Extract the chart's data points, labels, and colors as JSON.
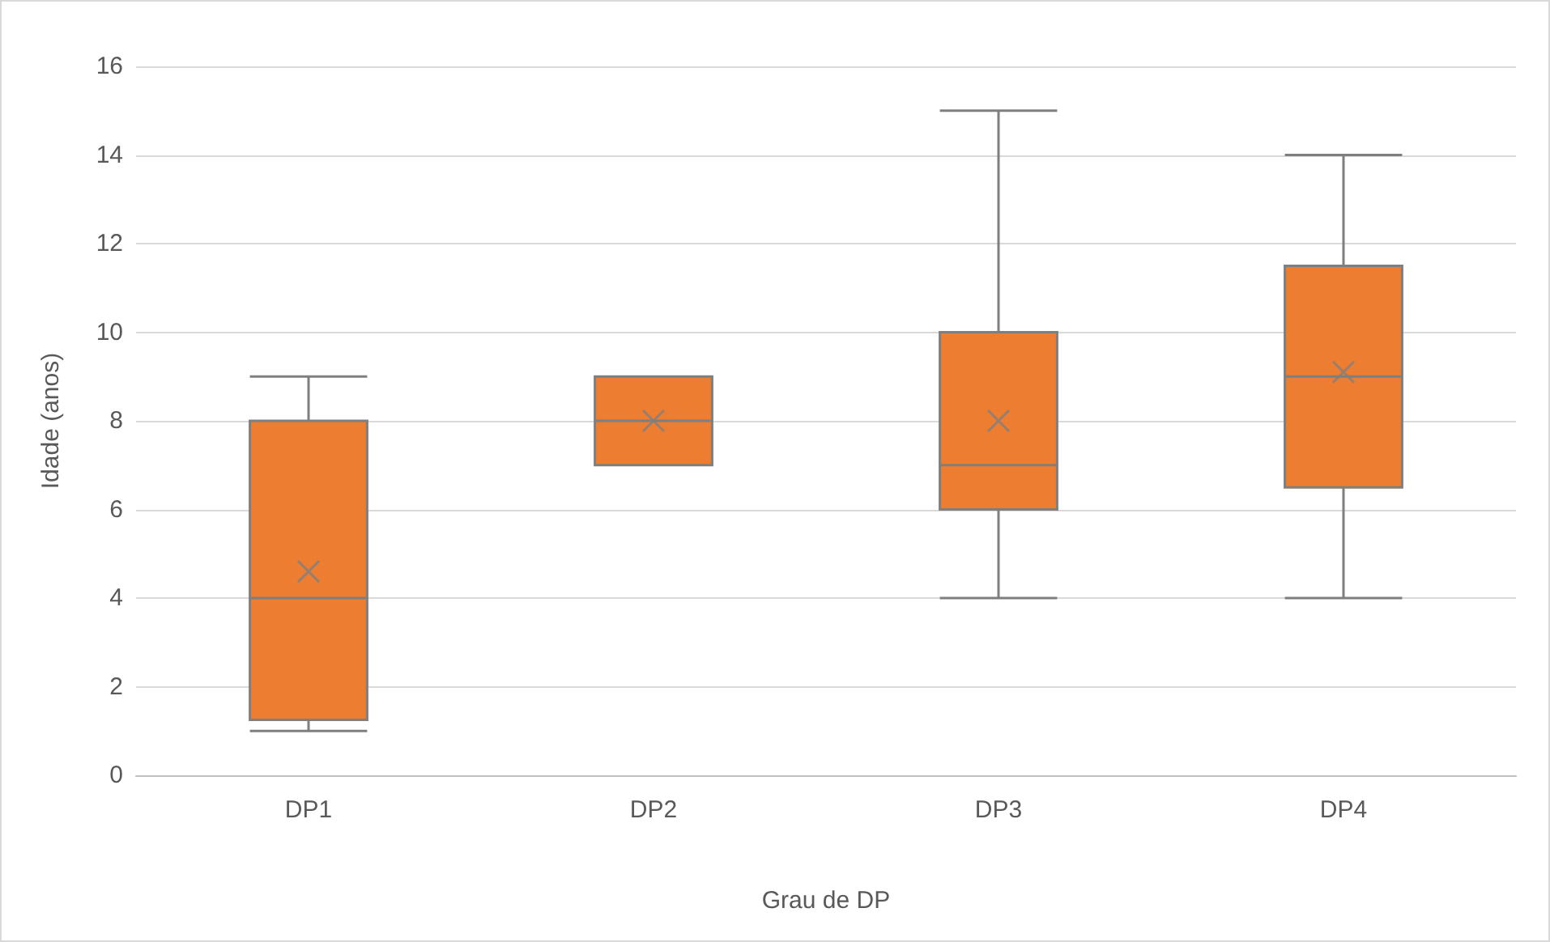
{
  "chart_data": {
    "type": "box",
    "xlabel": "Grau de DP",
    "ylabel": "Idade (anos)",
    "categories": [
      "DP1",
      "DP2",
      "DP3",
      "DP4"
    ],
    "series": [
      {
        "color": "#ed7d31",
        "boxes": [
          {
            "low": 1,
            "q1": 1.25,
            "median": 4,
            "q3": 8,
            "high": 9,
            "mean": 4.6
          },
          {
            "low": 7,
            "q1": 7,
            "median": 8,
            "q3": 9,
            "high": 9,
            "mean": 8
          },
          {
            "low": 4,
            "q1": 6,
            "median": 7,
            "q3": 10,
            "high": 15,
            "mean": 8
          },
          {
            "low": 4,
            "q1": 6.5,
            "median": 9,
            "q3": 11.5,
            "high": 14,
            "mean": 9.1
          }
        ]
      }
    ],
    "ylim": [
      0,
      16
    ],
    "yticks": [
      0,
      2,
      4,
      6,
      8,
      10,
      12,
      14,
      16
    ],
    "grid": "y"
  }
}
